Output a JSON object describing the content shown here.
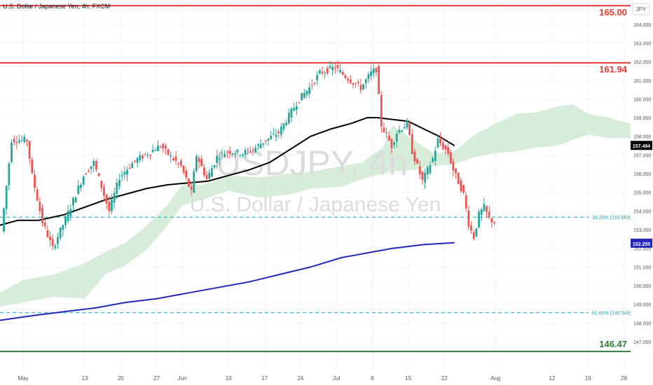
{
  "header": {
    "symbol_title": "U.S. Dollar / Japanese Yen, 4h, FXCM"
  },
  "watermark": {
    "ticker": "USDJPY, 4h",
    "name": "U.S. Dollar / Japanese Yen"
  },
  "y_axis": {
    "currency": "JPY",
    "ticks": [
      "147.000",
      "148.000",
      "149.000",
      "150.000",
      "151.000",
      "152.000",
      "153.000",
      "154.000",
      "155.000",
      "156.000",
      "157.000",
      "158.000",
      "159.000",
      "160.000",
      "161.000",
      "162.000",
      "163.000",
      "164.000"
    ],
    "tick_values": [
      147,
      148,
      149,
      150,
      151,
      152,
      153,
      154,
      155,
      156,
      157,
      158,
      159,
      160,
      161,
      162,
      163,
      164
    ]
  },
  "x_axis": {
    "labels": [
      "May",
      "13",
      "20",
      "27",
      "Jun",
      "10",
      "17",
      "24",
      "Jul",
      "8",
      "15",
      "22",
      "Aug",
      "12",
      "19",
      "26"
    ],
    "label_days": [
      0,
      12,
      19,
      26,
      31,
      40,
      47,
      54,
      61,
      68,
      75,
      82,
      92,
      103,
      110,
      117
    ]
  },
  "levels": [
    {
      "label": "165.00",
      "value": 165.0,
      "color": "#e53935"
    },
    {
      "label": "161.94",
      "value": 161.94,
      "color": "#e53935"
    },
    {
      "label": "146.47",
      "value": 146.47,
      "color": "#2e7d32"
    }
  ],
  "fib": [
    {
      "label": "38.20% (153.669)",
      "value": 153.669
    },
    {
      "label": "61.80% (148.549)",
      "value": 148.549
    }
  ],
  "price_tags": [
    {
      "label": "157.494",
      "value": 157.494,
      "color": "#000000"
    },
    {
      "label": "152.255",
      "value": 152.255,
      "color": "#2128b8"
    }
  ],
  "colors": {
    "up": "#26a69a",
    "down": "#ef5350",
    "ma_fast": "#000000",
    "ma_slow": "#2128b8",
    "cloud": "#c8e6c9",
    "fib": "#00acc1"
  },
  "chart_data": {
    "type": "candlestick",
    "title": "U.S. Dollar / Japanese Yen, 4h, FXCM",
    "ylim": [
      146.2,
      165.5
    ],
    "x_unit": "days since Apr 30",
    "price_path": [
      [
        -4,
        152.9
      ],
      [
        -2,
        157.8
      ],
      [
        1,
        157.8
      ],
      [
        2,
        155.9
      ],
      [
        4,
        153.4
      ],
      [
        6,
        152.0
      ],
      [
        9,
        153.9
      ],
      [
        12,
        155.9
      ],
      [
        14,
        156.6
      ],
      [
        17,
        154.0
      ],
      [
        19,
        155.8
      ],
      [
        22,
        156.7
      ],
      [
        24,
        157.0
      ],
      [
        27,
        157.5
      ],
      [
        29,
        156.9
      ],
      [
        31,
        156.4
      ],
      [
        33,
        155.0
      ],
      [
        34,
        157.0
      ],
      [
        36,
        155.7
      ],
      [
        38,
        156.9
      ],
      [
        40,
        157.2
      ],
      [
        43,
        157.1
      ],
      [
        45,
        157.3
      ],
      [
        47,
        157.7
      ],
      [
        50,
        158.2
      ],
      [
        52,
        159.1
      ],
      [
        54,
        160.0
      ],
      [
        56,
        160.6
      ],
      [
        58,
        161.4
      ],
      [
        61,
        161.7
      ],
      [
        63,
        161.2
      ],
      [
        66,
        160.6
      ],
      [
        68,
        161.4
      ],
      [
        69,
        161.6
      ],
      [
        70,
        158.6
      ],
      [
        72,
        157.5
      ],
      [
        73,
        158.2
      ],
      [
        75,
        158.7
      ],
      [
        76,
        157.2
      ],
      [
        78,
        155.6
      ],
      [
        80,
        156.8
      ],
      [
        81,
        157.8
      ],
      [
        83,
        157.1
      ],
      [
        84,
        156.2
      ],
      [
        86,
        154.9
      ],
      [
        87,
        153.3
      ],
      [
        88,
        152.6
      ],
      [
        89,
        153.8
      ],
      [
        90,
        154.2
      ],
      [
        91,
        153.6
      ],
      [
        92,
        153.4
      ]
    ],
    "ma_fast": [
      [
        -8,
        152.6
      ],
      [
        -5,
        153.2
      ],
      [
        -1,
        153.5
      ],
      [
        3,
        153.5
      ],
      [
        8,
        153.8
      ],
      [
        12,
        154.2
      ],
      [
        16,
        154.6
      ],
      [
        20,
        154.9
      ],
      [
        24,
        155.2
      ],
      [
        28,
        155.4
      ],
      [
        32,
        155.5
      ],
      [
        36,
        155.6
      ],
      [
        40,
        155.9
      ],
      [
        44,
        156.2
      ],
      [
        48,
        156.6
      ],
      [
        52,
        157.3
      ],
      [
        56,
        158.0
      ],
      [
        60,
        158.4
      ],
      [
        64,
        158.7
      ],
      [
        67,
        159.0
      ],
      [
        69,
        159.0
      ],
      [
        72,
        158.9
      ],
      [
        75,
        158.8
      ],
      [
        78,
        158.4
      ],
      [
        81,
        158.0
      ],
      [
        84,
        157.5
      ]
    ],
    "ma_slow": [
      [
        -8,
        148.0
      ],
      [
        -3,
        148.2
      ],
      [
        2,
        148.4
      ],
      [
        8,
        148.6
      ],
      [
        14,
        148.8
      ],
      [
        20,
        149.1
      ],
      [
        26,
        149.3
      ],
      [
        32,
        149.6
      ],
      [
        38,
        149.9
      ],
      [
        44,
        150.2
      ],
      [
        50,
        150.6
      ],
      [
        56,
        151.0
      ],
      [
        62,
        151.5
      ],
      [
        68,
        151.8
      ],
      [
        72,
        152.0
      ],
      [
        78,
        152.2
      ],
      [
        84,
        152.3
      ]
    ],
    "cloud_upper": [
      [
        -8,
        149.3
      ],
      [
        -4,
        149.7
      ],
      [
        0,
        150.3
      ],
      [
        6,
        150.6
      ],
      [
        12,
        151.2
      ],
      [
        16,
        151.8
      ],
      [
        20,
        152.3
      ],
      [
        24,
        153.2
      ],
      [
        28,
        154.3
      ],
      [
        31,
        155.4
      ],
      [
        35,
        155.4
      ],
      [
        40,
        155.9
      ],
      [
        46,
        155.8
      ],
      [
        52,
        156.0
      ],
      [
        56,
        156.1
      ],
      [
        62,
        156.4
      ],
      [
        66,
        156.6
      ],
      [
        70,
        157.4
      ],
      [
        72,
        158.6
      ],
      [
        76,
        157.8
      ],
      [
        80,
        157.1
      ],
      [
        84,
        157.2
      ],
      [
        88,
        158.1
      ],
      [
        92,
        158.7
      ],
      [
        96,
        159.2
      ],
      [
        100,
        159.3
      ],
      [
        104,
        159.6
      ],
      [
        107,
        159.7
      ],
      [
        110,
        159.2
      ],
      [
        114,
        159.0
      ],
      [
        118,
        158.7
      ],
      [
        122,
        158.6
      ]
    ],
    "cloud_lower": [
      [
        -8,
        148.3
      ],
      [
        -4,
        148.9
      ],
      [
        0,
        149.1
      ],
      [
        6,
        149.4
      ],
      [
        12,
        149.3
      ],
      [
        16,
        150.6
      ],
      [
        20,
        151.1
      ],
      [
        24,
        151.9
      ],
      [
        28,
        153.2
      ],
      [
        31,
        154.3
      ],
      [
        35,
        154.6
      ],
      [
        40,
        155.1
      ],
      [
        46,
        154.7
      ],
      [
        52,
        154.9
      ],
      [
        56,
        155.2
      ],
      [
        62,
        155.3
      ],
      [
        66,
        155.7
      ],
      [
        70,
        156.0
      ],
      [
        72,
        156.1
      ],
      [
        76,
        156.2
      ],
      [
        80,
        156.4
      ],
      [
        84,
        156.5
      ],
      [
        88,
        156.9
      ],
      [
        92,
        157.1
      ],
      [
        96,
        157.2
      ],
      [
        100,
        157.4
      ],
      [
        104,
        157.5
      ],
      [
        107,
        157.8
      ],
      [
        110,
        158.1
      ],
      [
        114,
        157.9
      ],
      [
        118,
        157.9
      ],
      [
        122,
        157.9
      ]
    ],
    "projection": [
      [
        122,
        157.6
      ],
      [
        124,
        156.6
      ]
    ]
  }
}
